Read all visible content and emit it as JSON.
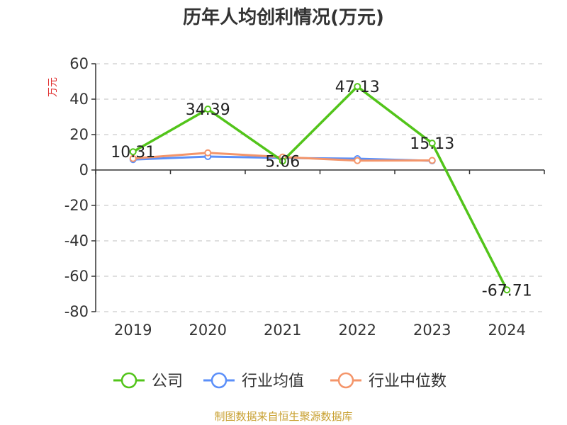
{
  "chart_data": {
    "type": "line",
    "title": "历年人均创利情况(万元)",
    "ylabel": "万元",
    "x": [
      "2019",
      "2020",
      "2021",
      "2022",
      "2023",
      "2024"
    ],
    "ylim": [
      -80,
      60
    ],
    "yticks": [
      60,
      40,
      20,
      0,
      -20,
      -40,
      -60,
      -80
    ],
    "grid": true,
    "legend_position": "bottom",
    "series": [
      {
        "name": "公司",
        "color": "#52c41a",
        "values": [
          10.31,
          34.39,
          5.06,
          47.13,
          15.13,
          -67.71
        ],
        "labels": [
          "10.31",
          "34.39",
          "5.06",
          "47.13",
          "15.13",
          "-67.71"
        ]
      },
      {
        "name": "行业均值",
        "color": "#5b8ff9",
        "values": [
          5.9,
          7.6,
          6.8,
          6.4,
          5.2,
          null
        ]
      },
      {
        "name": "行业中位数",
        "color": "#f4956a",
        "values": [
          6.5,
          9.7,
          7.3,
          5.3,
          5.4,
          null
        ]
      }
    ]
  },
  "source": "制图数据来自恒生聚源数据库"
}
